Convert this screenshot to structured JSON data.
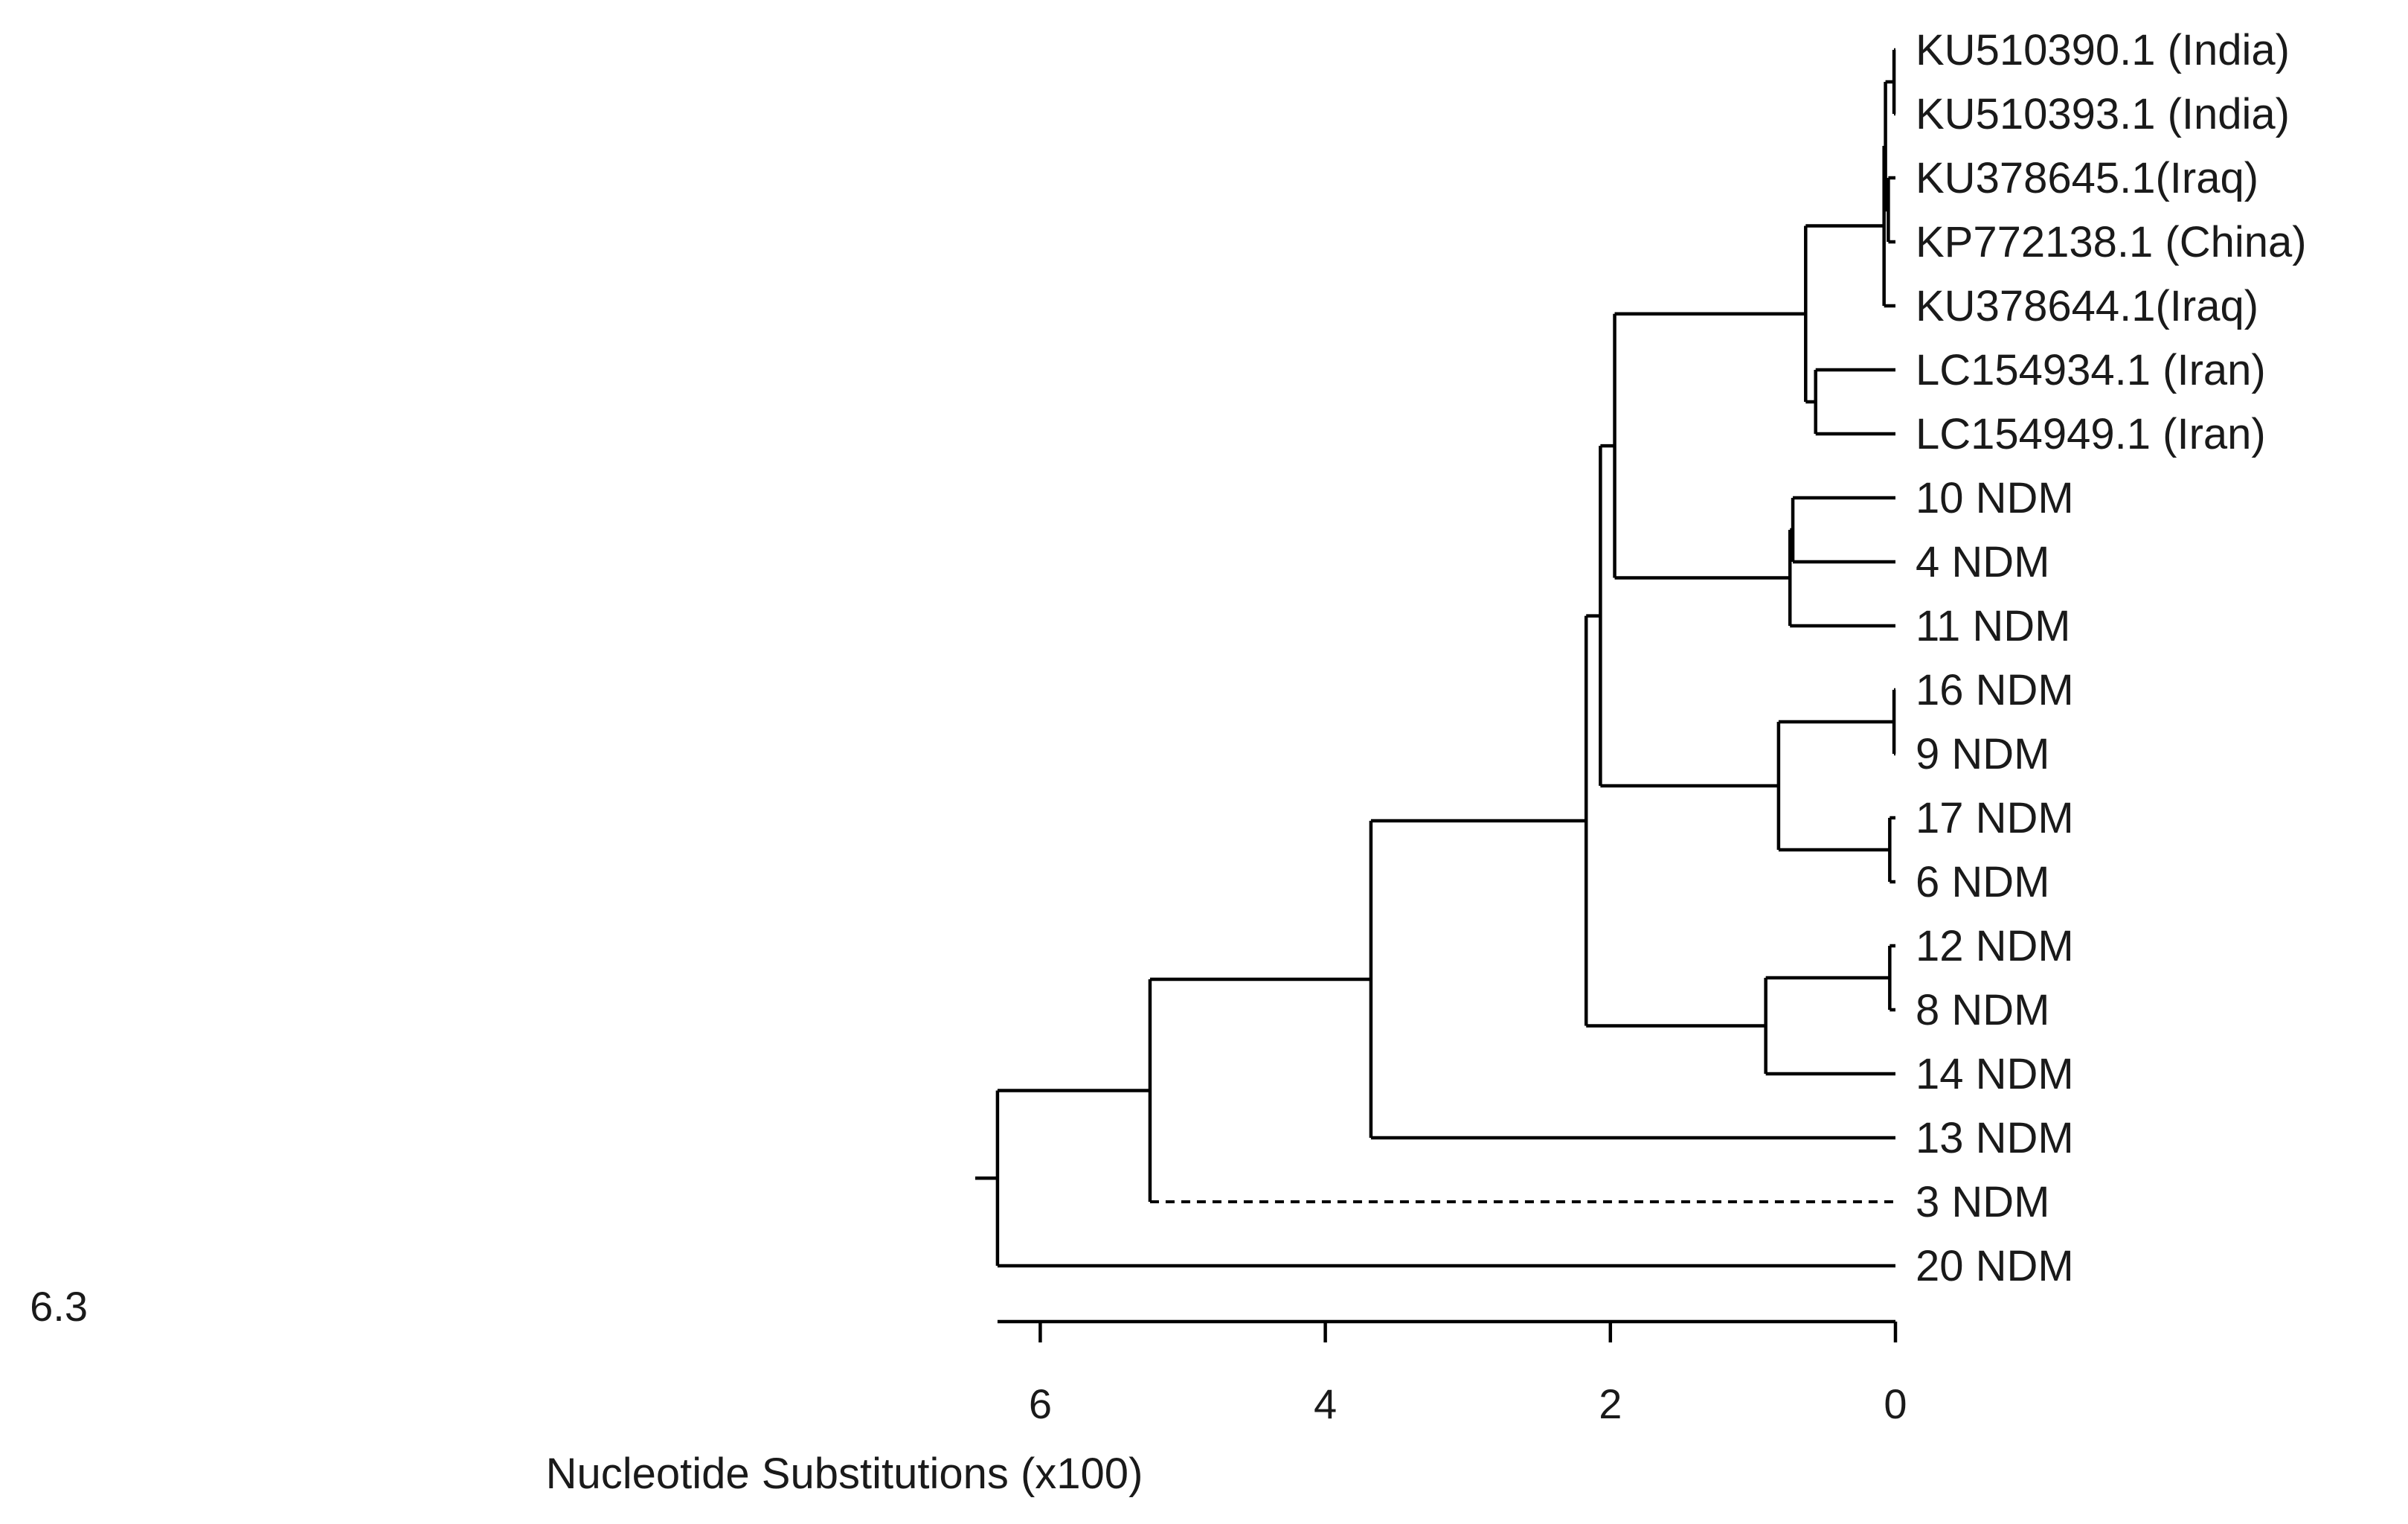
{
  "chart_data": {
    "type": "dendrogram",
    "title": "",
    "xlabel": "Nucleotide Substitutions (x100)",
    "axis": {
      "ticks": [
        6,
        4,
        2,
        0
      ],
      "tick_labels": [
        "6",
        "4",
        "2",
        "0"
      ],
      "range": [
        6.3,
        0
      ]
    },
    "total_length_label": "6.3",
    "leaves": [
      {
        "id": "L1",
        "label": "KU510390.1 (India)"
      },
      {
        "id": "L2",
        "label": "KU510393.1 (India)"
      },
      {
        "id": "L3",
        "label": "KU378645.1(Iraq)"
      },
      {
        "id": "L4",
        "label": "KP772138.1 (China)"
      },
      {
        "id": "L5",
        "label": "KU378644.1(Iraq)"
      },
      {
        "id": "L6",
        "label": "LC154934.1 (Iran)"
      },
      {
        "id": "L7",
        "label": "LC154949.1 (Iran)"
      },
      {
        "id": "L8",
        "label": "10 NDM"
      },
      {
        "id": "L9",
        "label": "4 NDM"
      },
      {
        "id": "L10",
        "label": "11 NDM"
      },
      {
        "id": "L11",
        "label": "16 NDM"
      },
      {
        "id": "L12",
        "label": "9 NDM"
      },
      {
        "id": "L13",
        "label": "17 NDM"
      },
      {
        "id": "L14",
        "label": "6 NDM"
      },
      {
        "id": "L15",
        "label": "12 NDM"
      },
      {
        "id": "L16",
        "label": "8 NDM"
      },
      {
        "id": "L17",
        "label": "14 NDM"
      },
      {
        "id": "L18",
        "label": "13 NDM"
      },
      {
        "id": "L19",
        "label": "3 NDM"
      },
      {
        "id": "L20",
        "label": "20 NDM"
      }
    ],
    "nodes": [
      {
        "id": "N1",
        "height": 0.01,
        "children": [
          "L1",
          "L2"
        ]
      },
      {
        "id": "N2",
        "height": 0.05,
        "children": [
          "L3",
          "L4"
        ]
      },
      {
        "id": "N3",
        "height": 0.07,
        "children": [
          "N1",
          "N2"
        ]
      },
      {
        "id": "N4",
        "height": 0.08,
        "children": [
          "N3",
          "L5"
        ]
      },
      {
        "id": "N5",
        "height": 0.56,
        "children": [
          "L6",
          "L7"
        ]
      },
      {
        "id": "N6",
        "height": 0.63,
        "children": [
          "N4",
          "N5"
        ]
      },
      {
        "id": "N7",
        "height": 0.72,
        "children": [
          "L8",
          "L9"
        ]
      },
      {
        "id": "N8",
        "height": 0.74,
        "children": [
          "N7",
          "L10"
        ]
      },
      {
        "id": "N9",
        "height": 1.97,
        "children": [
          "N6",
          "N8"
        ]
      },
      {
        "id": "N10",
        "height": 0.01,
        "children": [
          "L11",
          "L12"
        ]
      },
      {
        "id": "N11",
        "height": 0.04,
        "children": [
          "L13",
          "L14"
        ]
      },
      {
        "id": "N12",
        "height": 0.82,
        "children": [
          "N10",
          "N11"
        ]
      },
      {
        "id": "N13",
        "height": 2.07,
        "children": [
          "N9",
          "N12"
        ]
      },
      {
        "id": "N14",
        "height": 0.04,
        "children": [
          "L15",
          "L16"
        ]
      },
      {
        "id": "N15",
        "height": 0.91,
        "children": [
          "N14",
          "L17"
        ]
      },
      {
        "id": "N16",
        "height": 2.17,
        "children": [
          "N13",
          "N15"
        ]
      },
      {
        "id": "N17",
        "height": 3.68,
        "children": [
          "N16",
          "L18"
        ]
      },
      {
        "id": "N18",
        "height": 5.23,
        "children": [
          "N17",
          "L19"
        ],
        "dashed_child": "L19"
      },
      {
        "id": "N19",
        "height": 6.3,
        "children": [
          "N18",
          "L20"
        ]
      }
    ],
    "root": "N19"
  }
}
